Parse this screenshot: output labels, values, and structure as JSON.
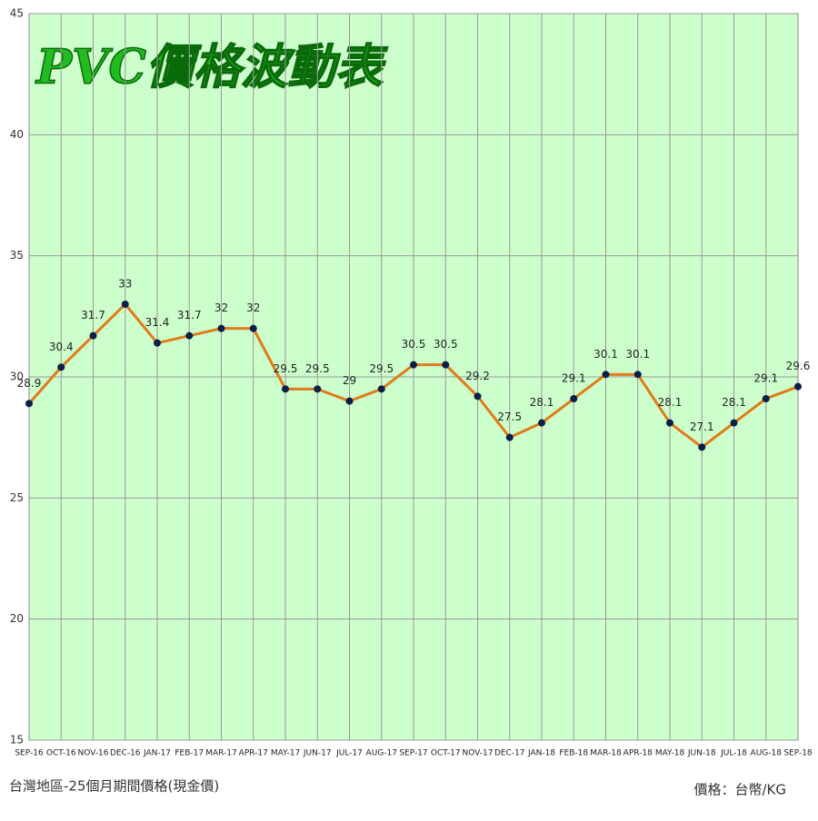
{
  "chart_data": {
    "type": "line",
    "title": "PVC價格波動表",
    "categories": [
      "SEP-16",
      "OCT-16",
      "NOV-16",
      "DEC-16",
      "JAN-17",
      "FEB-17",
      "MAR-17",
      "APR-17",
      "MAY-17",
      "JUN-17",
      "JUL-17",
      "AUG-17",
      "SEP-17",
      "OCT-17",
      "NOV-17",
      "DEC-17",
      "JAN-18",
      "FEB-18",
      "MAR-18",
      "APR-18",
      "MAY-18",
      "JUN-18",
      "JUL-18",
      "AUG-18",
      "SEP-18"
    ],
    "series": [
      {
        "color": "#e07b1a",
        "values": [
          28.9,
          30.4,
          31.7,
          33,
          31.4,
          31.7,
          32,
          32,
          29.5,
          29.5,
          29,
          29.5,
          30.5,
          30.5,
          29.2,
          27.5,
          28.1,
          29.1,
          30.1,
          30.1,
          28.1,
          27.1,
          28.1,
          29.1,
          29.6
        ]
      }
    ],
    "ylim": [
      15,
      45
    ],
    "yticks": [
      15,
      20,
      25,
      30,
      35,
      40,
      45
    ],
    "grid": true,
    "source_note": "台灣地區-25個月期間價格(現金價)",
    "unit_note": "價格：台幣/KG"
  }
}
